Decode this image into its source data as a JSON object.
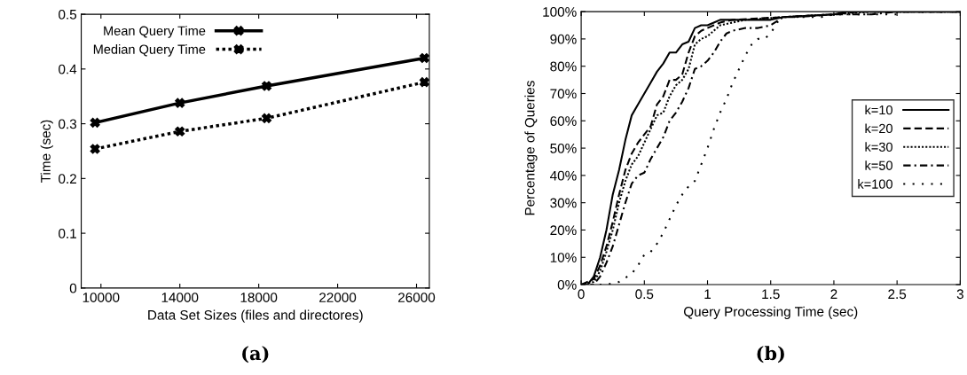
{
  "chart_data": [
    {
      "type": "line",
      "xlabel": "Data Set Sizes (files and directores)",
      "ylabel": "Time (sec)",
      "annotations": [
        "(a)"
      ],
      "x": [
        9700,
        14000,
        18400,
        26400
      ],
      "xlim": [
        9000,
        26650
      ],
      "xticks": [
        10000,
        14000,
        18000,
        22000,
        26000
      ],
      "ylim": [
        0,
        0.5
      ],
      "yticks": [
        0,
        0.1,
        0.2,
        0.3,
        0.4,
        0.5
      ],
      "legend": "top left",
      "series": [
        {
          "name": "Mean Query Time",
          "color": "#000000",
          "values": [
            0.302,
            0.338,
            0.369,
            0.42
          ],
          "marker": "cross",
          "line_style": "solid"
        },
        {
          "name": "Median Query Time",
          "color": "#000000",
          "values": [
            0.254,
            0.286,
            0.31,
            0.376
          ],
          "marker": "cross",
          "line_style": "dotted"
        }
      ]
    },
    {
      "type": "line",
      "xlabel": "Query Processing Time (sec)",
      "ylabel": "Percentage of Queries",
      "annotations": [
        "(b)"
      ],
      "xlim": [
        0,
        3
      ],
      "xticks": [
        0,
        0.5,
        1,
        1.5,
        2,
        2.5,
        3
      ],
      "ylim": [
        0,
        100
      ],
      "yticks": [
        {
          "value": 0,
          "label": "0%"
        },
        {
          "value": 10,
          "label": "10%"
        },
        {
          "value": 20,
          "label": "20%"
        },
        {
          "value": 30,
          "label": "30%"
        },
        {
          "value": 40,
          "label": "40%"
        },
        {
          "value": 50,
          "label": "50%"
        },
        {
          "value": 60,
          "label": "60%"
        },
        {
          "value": 70,
          "label": "70%"
        },
        {
          "value": 80,
          "label": "80%"
        },
        {
          "value": 90,
          "label": "90%"
        },
        {
          "value": 100,
          "label": "100%"
        }
      ],
      "legend": "right",
      "series": [
        {
          "name": "k=10",
          "color": "#000000",
          "line_style": "solid",
          "x": [
            0,
            0.05,
            0.1,
            0.15,
            0.2,
            0.25,
            0.3,
            0.35,
            0.4,
            0.45,
            0.5,
            0.55,
            0.6,
            0.65,
            0.7,
            0.75,
            0.8,
            0.85,
            0.9,
            0.95,
            1.0,
            1.05,
            1.1,
            1.2,
            1.5,
            1.6,
            2.0,
            2.1,
            3
          ],
          "values": [
            0,
            0,
            3,
            10,
            20,
            33,
            42,
            53,
            62,
            66,
            70,
            74,
            78,
            81,
            85,
            85,
            88,
            89,
            94,
            95,
            95,
            96,
            97,
            97,
            97,
            98,
            99,
            100,
            100
          ]
        },
        {
          "name": "k=20",
          "color": "#000000",
          "line_style": "dashed",
          "x": [
            0,
            0.1,
            0.15,
            0.2,
            0.25,
            0.3,
            0.35,
            0.4,
            0.45,
            0.5,
            0.55,
            0.6,
            0.65,
            0.7,
            0.75,
            0.8,
            0.85,
            0.9,
            0.95,
            1.0,
            1.05,
            1.1,
            1.2,
            1.6,
            2.0,
            2.2,
            3
          ],
          "values": [
            0,
            2,
            7,
            14,
            23,
            33,
            42,
            48,
            52,
            55,
            58,
            66,
            69,
            75,
            75,
            77,
            85,
            91,
            93,
            94,
            95,
            96,
            97,
            98,
            99,
            100,
            100
          ]
        },
        {
          "name": "k=30",
          "color": "#000000",
          "line_style": "dotted",
          "x": [
            0,
            0.1,
            0.15,
            0.2,
            0.25,
            0.3,
            0.35,
            0.4,
            0.45,
            0.5,
            0.55,
            0.6,
            0.65,
            0.7,
            0.75,
            0.8,
            0.85,
            0.9,
            0.95,
            1.0,
            1.05,
            1.1,
            1.2,
            1.3,
            1.6,
            2.0,
            2.3,
            3
          ],
          "values": [
            0,
            1,
            5,
            12,
            20,
            30,
            38,
            44,
            47,
            52,
            57,
            62,
            63,
            69,
            73,
            75,
            79,
            88,
            90,
            91,
            93,
            95,
            96,
            97,
            98,
            99,
            100,
            100
          ]
        },
        {
          "name": "k=50",
          "color": "#000000",
          "line_style": "dashdot",
          "x": [
            0,
            0.1,
            0.15,
            0.2,
            0.25,
            0.3,
            0.35,
            0.4,
            0.45,
            0.5,
            0.55,
            0.6,
            0.65,
            0.7,
            0.75,
            0.8,
            0.85,
            0.9,
            0.95,
            1.0,
            1.05,
            1.1,
            1.15,
            1.2,
            1.3,
            1.4,
            1.5,
            1.6,
            1.7,
            2.0,
            2.3,
            2.5,
            3
          ],
          "values": [
            0,
            0,
            3,
            8,
            14,
            22,
            30,
            37,
            40,
            41,
            46,
            50,
            54,
            60,
            63,
            67,
            72,
            79,
            80,
            82,
            85,
            89,
            92,
            93,
            94,
            94,
            95,
            98,
            98,
            99,
            99,
            100,
            100
          ]
        },
        {
          "name": "k=100",
          "color": "#000000",
          "line_style": "loosely dotted",
          "x": [
            0,
            0.2,
            0.3,
            0.4,
            0.45,
            0.5,
            0.55,
            0.6,
            0.65,
            0.7,
            0.75,
            0.8,
            0.85,
            0.9,
            0.95,
            1.0,
            1.05,
            1.1,
            1.15,
            1.2,
            1.25,
            1.3,
            1.35,
            1.4,
            1.45,
            1.5,
            1.55,
            1.6,
            1.7,
            1.9,
            2.0,
            2.5,
            2.55,
            3
          ],
          "values": [
            0,
            0,
            1,
            4,
            7,
            11,
            12,
            15,
            19,
            24,
            29,
            33,
            36,
            38,
            44,
            50,
            57,
            63,
            68,
            74,
            79,
            84,
            88,
            90,
            90,
            92,
            96,
            98,
            98,
            98,
            99,
            99,
            100,
            100
          ]
        }
      ]
    }
  ]
}
